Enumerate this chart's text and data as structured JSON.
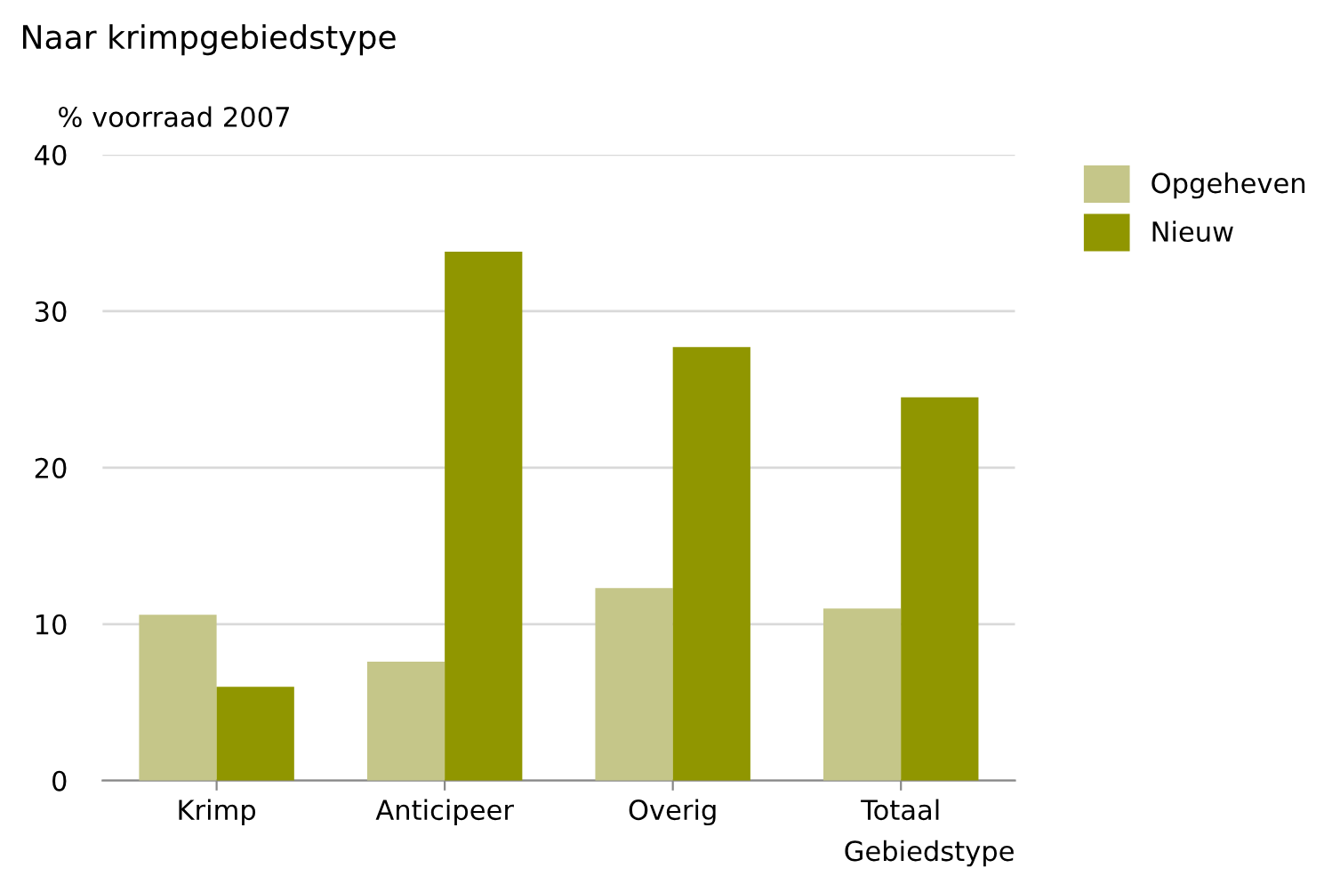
{
  "chart_data": {
    "type": "bar",
    "title": "Naar krimpgebiedstype",
    "ylabel": "% voorraad 2007",
    "xlabel": "Gebiedstype",
    "categories": [
      "Krimp",
      "Anticipeer",
      "Overig",
      "Totaal"
    ],
    "series": [
      {
        "name": "Opgeheven",
        "color": "#c5c689",
        "values": [
          10.6,
          7.6,
          12.3,
          11.0
        ]
      },
      {
        "name": "Nieuw",
        "color": "#909600",
        "values": [
          6.0,
          33.8,
          27.7,
          24.5
        ]
      }
    ],
    "ylim": [
      0,
      40
    ],
    "yticks": [
      0,
      10,
      20,
      30,
      40
    ],
    "grid": "y",
    "legend": "top right"
  }
}
